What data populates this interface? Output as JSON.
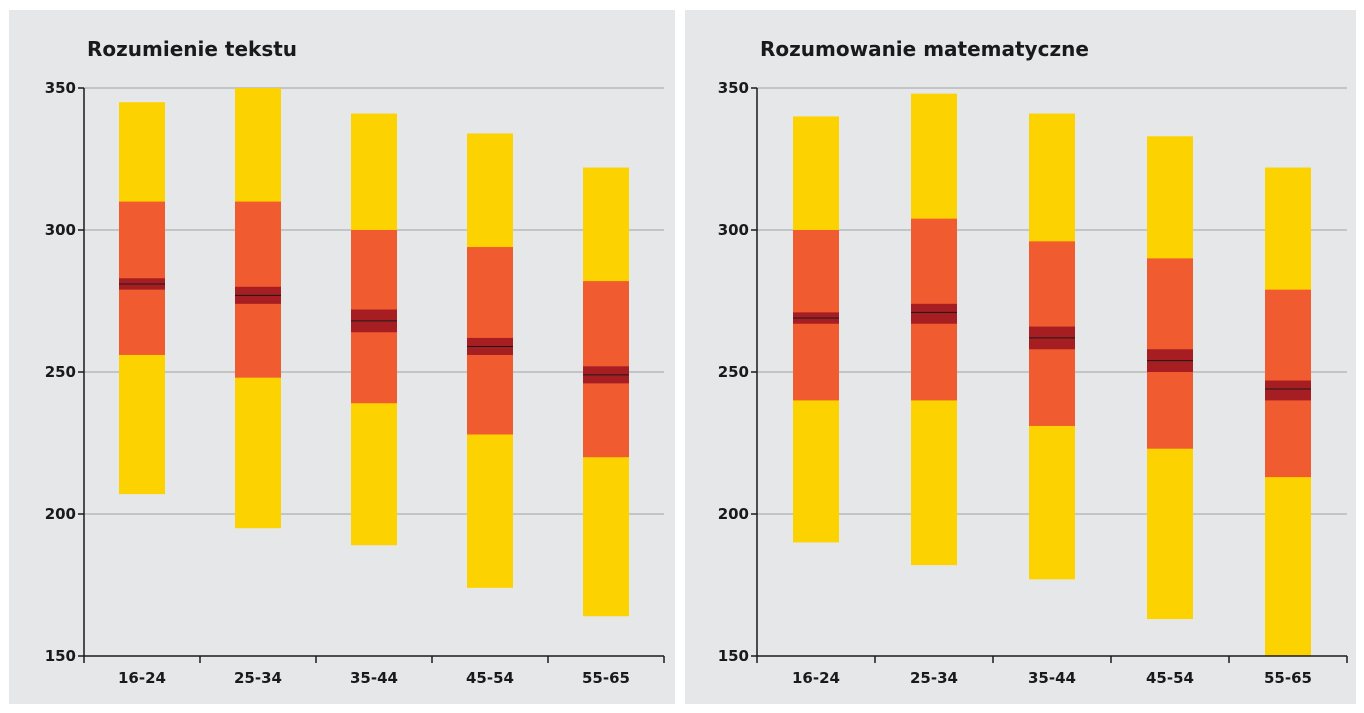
{
  "colors": {
    "background": "#e6e7e9",
    "gridline": "#a0a0a0",
    "axis": "#1a1a1a",
    "outer_band": "#fcd300",
    "inner_band": "#f15b30",
    "mean_ci": "#a61e22",
    "mean_line": "#1a1a1a"
  },
  "chart_data": [
    {
      "type": "bar",
      "variant": "percentile-range",
      "title": "Rozumienie tekstu",
      "categories": [
        "16-24",
        "25-34",
        "35-44",
        "45-54",
        "55-65"
      ],
      "ylim": [
        150,
        350
      ],
      "yticks": [
        150,
        200,
        250,
        300,
        350
      ],
      "grid": true,
      "series": [
        {
          "low": 207,
          "high": 345
        },
        {
          "low": 195,
          "high": 350
        },
        {
          "low": 189,
          "high": 341
        },
        {
          "low": 174,
          "high": 334
        },
        {
          "low": 164,
          "high": 322
        }
      ],
      "inner": [
        {
          "low": 256,
          "high": 310
        },
        {
          "low": 248,
          "high": 310
        },
        {
          "low": 239,
          "high": 300
        },
        {
          "low": 228,
          "high": 294
        },
        {
          "low": 220,
          "high": 282
        }
      ],
      "mean": [
        {
          "low": 279,
          "value": 281,
          "high": 283
        },
        {
          "low": 274,
          "value": 277,
          "high": 280
        },
        {
          "low": 264,
          "value": 268,
          "high": 272
        },
        {
          "low": 256,
          "value": 259,
          "high": 262
        },
        {
          "low": 246,
          "value": 249,
          "high": 252
        }
      ]
    },
    {
      "type": "bar",
      "variant": "percentile-range",
      "title": "Rozumowanie matematyczne",
      "categories": [
        "16-24",
        "25-34",
        "35-44",
        "45-54",
        "55-65"
      ],
      "ylim": [
        150,
        350
      ],
      "yticks": [
        150,
        200,
        250,
        300,
        350
      ],
      "grid": true,
      "series": [
        {
          "low": 190,
          "high": 340
        },
        {
          "low": 182,
          "high": 348
        },
        {
          "low": 177,
          "high": 341
        },
        {
          "low": 163,
          "high": 333
        },
        {
          "low": 150,
          "high": 322
        }
      ],
      "inner": [
        {
          "low": 240,
          "high": 300
        },
        {
          "low": 240,
          "high": 304
        },
        {
          "low": 231,
          "high": 296
        },
        {
          "low": 223,
          "high": 290
        },
        {
          "low": 213,
          "high": 279
        }
      ],
      "mean": [
        {
          "low": 267,
          "value": 269,
          "high": 271
        },
        {
          "low": 267,
          "value": 271,
          "high": 274
        },
        {
          "low": 258,
          "value": 262,
          "high": 266
        },
        {
          "low": 250,
          "value": 254,
          "high": 258
        },
        {
          "low": 240,
          "value": 244,
          "high": 247
        }
      ]
    }
  ]
}
